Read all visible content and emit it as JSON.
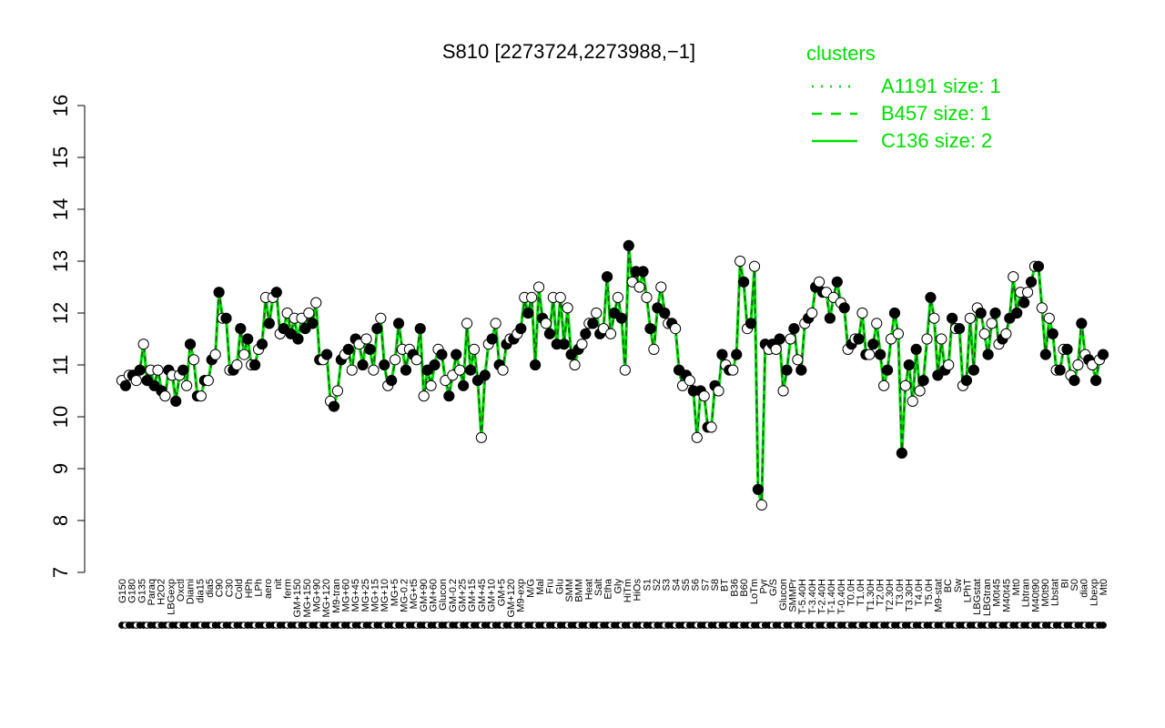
{
  "chart_data": {
    "type": "line",
    "title": "S810 [2273724,2273988,−1]",
    "xlabel": "",
    "ylabel": "",
    "ylim": [
      7,
      16
    ],
    "yticks": [
      7,
      8,
      9,
      10,
      11,
      12,
      13,
      14,
      15,
      16
    ],
    "grid": false,
    "colors": {
      "line": "#00e000",
      "point_open": "#ffffff",
      "point_filled": "#000000",
      "legend": "#00e000"
    },
    "legend": {
      "title": "clusters",
      "placement": "top-right",
      "items": [
        {
          "label": "A1191 size: 1",
          "style": "dotted"
        },
        {
          "label": "B457 size: 1",
          "style": "dashed"
        },
        {
          "label": "C136 size: 2",
          "style": "solid"
        }
      ]
    },
    "x_tick_labels": [
      "G150",
      "G180",
      "G135",
      "Paraq",
      "H2O2",
      "LBGexp",
      "Oxctl",
      "Diami",
      "dia15",
      "dia5",
      "C90",
      "C30",
      "Cold",
      "HPh",
      "LPh",
      "aero",
      "nit",
      "ferm",
      "GM+150",
      "MG+150",
      "MG+90",
      "MG+120",
      "M9-tran",
      "MG+60",
      "MG+45",
      "MG+25",
      "MG+15",
      "MG+10",
      "MG+5",
      "MG-0.2",
      "MG+t5",
      "GM+90",
      "GM+60",
      "Glucon",
      "GM-0.2",
      "GM+25",
      "GM+15",
      "GM+45",
      "GM+10",
      "GM+5",
      "GM+120",
      "M9-exp",
      "M/G",
      "Mal",
      "Fru",
      "Glu",
      "SMM",
      "BMM",
      "Heat",
      "Salt",
      "Etha",
      "Gly",
      "HiTm",
      "HiOs",
      "S1",
      "S2",
      "S3",
      "S4",
      "S5",
      "S6",
      "S7",
      "S8",
      "BT",
      "B36",
      "B60",
      "LoTm",
      "Pyr",
      "G/S",
      "Glucon",
      "SMMPr",
      "T-5.40H",
      "T-3.40H",
      "T-2.40H",
      "T-1.40H",
      "T-0.40H",
      "T0.0H",
      "T1.0H",
      "T1.30H",
      "T2.0H",
      "T2.30H",
      "T3.0H",
      "T3.30H",
      "T4.0H",
      "T5.0H",
      "M9-stat",
      "BC",
      "Sw",
      "LPhT",
      "LBGstat",
      "LBGtran",
      "M0t45",
      "M40t45",
      "Mt0",
      "Lbtran",
      "M40t90",
      "M0t90",
      "Lbstat",
      "BI",
      "S0",
      "dia0",
      "Lbexp",
      "Mt0"
    ],
    "point_values": [
      10.7,
      10.6,
      10.8,
      10.8,
      10.7,
      10.9,
      11.4,
      10.7,
      10.9,
      10.6,
      10.9,
      10.5,
      10.4,
      10.9,
      10.8,
      10.3,
      10.8,
      10.9,
      10.6,
      11.4,
      11.1,
      10.4,
      10.4,
      10.7,
      10.7,
      11.1,
      11.2,
      12.4,
      11.9,
      11.9,
      10.9,
      10.9,
      11.0,
      11.7,
      11.2,
      11.5,
      11.0,
      11.0,
      11.3,
      11.4,
      12.3,
      11.8,
      12.3,
      12.4,
      11.6,
      11.7,
      12.0,
      11.6,
      11.9,
      11.5,
      11.9,
      11.7,
      12.0,
      11.8,
      12.2,
      11.1,
      11.1,
      11.2,
      10.3,
      10.2,
      10.5,
      11.1,
      11.2,
      11.3,
      10.9,
      11.5,
      11.4,
      11.0,
      11.5,
      11.3,
      10.9,
      11.7,
      11.9,
      11.0,
      10.6,
      10.7,
      11.1,
      11.8,
      11.3,
      10.9,
      11.3,
      11.2,
      11.1,
      11.7,
      10.4,
      10.9,
      10.6,
      11.0,
      11.3,
      11.2,
      10.7,
      10.4,
      10.8,
      11.2,
      10.9,
      10.6,
      11.8,
      10.9,
      11.3,
      10.7,
      9.6,
      10.8,
      11.4,
      11.5,
      11.8,
      11.0,
      10.9,
      11.4,
      11.5,
      11.5,
      11.6,
      11.7,
      12.3,
      12.0,
      12.3,
      11.0,
      12.5,
      11.9,
      11.8,
      11.6,
      12.3,
      11.4,
      12.3,
      11.4,
      12.1,
      11.2,
      11.0,
      11.3,
      11.4,
      11.6,
      11.8,
      11.8,
      12.0,
      11.6,
      11.7,
      12.7,
      11.6,
      12.0,
      12.3,
      11.9,
      10.9,
      13.3,
      12.6,
      12.8,
      12.5,
      12.8,
      12.3,
      11.7,
      11.3,
      12.1,
      12.5,
      12.0,
      11.8,
      11.8,
      11.7,
      10.9,
      10.6,
      10.8,
      10.7,
      10.5,
      9.6,
      10.5,
      10.4,
      9.8,
      9.8,
      10.6,
      10.5,
      11.2,
      11.0,
      10.9,
      10.9,
      11.2,
      13.0,
      12.6,
      11.7,
      11.8,
      12.9,
      8.6,
      8.3,
      11.4,
      11.3,
      11.4,
      11.3,
      11.5,
      10.5,
      10.9,
      11.5,
      11.7,
      11.1,
      10.9,
      11.8,
      11.9,
      12.0,
      12.5,
      12.6,
      12.4,
      12.4,
      11.9,
      12.3,
      12.6,
      12.2,
      12.1,
      11.3,
      11.4,
      11.5,
      11.5,
      12.0,
      11.2,
      11.2,
      11.4,
      11.8,
      11.2,
      10.6,
      10.9,
      11.5,
      12.0,
      11.6,
      9.3,
      10.6,
      11.0,
      10.3,
      11.3,
      10.5,
      10.7,
      11.5,
      12.3,
      11.9,
      10.8,
      11.5,
      10.9,
      11.0,
      11.9,
      11.7,
      11.7,
      10.6,
      10.7,
      11.9,
      10.9,
      12.1,
      12.0,
      11.6,
      11.2,
      11.8,
      12.0,
      11.4,
      11.5,
      11.6,
      11.9,
      12.7,
      12.0,
      12.4,
      12.2,
      12.4,
      12.6,
      12.9,
      12.9,
      12.1,
      11.2,
      11.9,
      11.6,
      10.9,
      10.9,
      11.3,
      11.3,
      10.8,
      10.7,
      11.0,
      11.8,
      11.2,
      11.1,
      11.0,
      10.7,
      11.1,
      11.2
    ]
  }
}
